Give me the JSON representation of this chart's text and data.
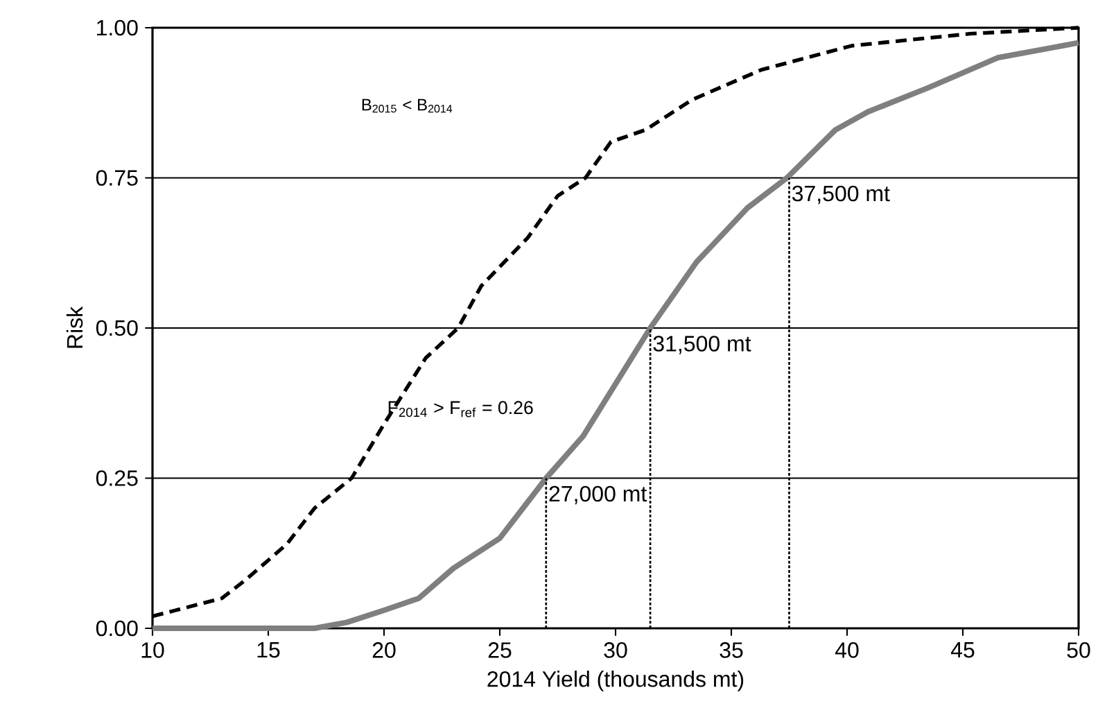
{
  "chart_data": {
    "type": "line",
    "xlabel": "2014 Yield (thousands mt)",
    "ylabel": "Risk",
    "xlim": [
      10,
      50
    ],
    "ylim": [
      0,
      1
    ],
    "xticks": [
      10,
      15,
      20,
      25,
      30,
      35,
      40,
      45,
      50
    ],
    "yticks": [
      {
        "value": 0,
        "label": "0.00"
      },
      {
        "value": 0.25,
        "label": "0.25"
      },
      {
        "value": 0.5,
        "label": "0.50"
      },
      {
        "value": 0.75,
        "label": "0.75"
      },
      {
        "value": 1,
        "label": "1.00"
      }
    ],
    "grid": "y",
    "marker": "none",
    "series": [
      {
        "color": "#000000",
        "line_style": "dashed",
        "x": [
          10,
          11,
          13,
          14,
          15.8,
          17,
          18.6,
          20,
          21.8,
          23.2,
          24.2,
          26.2,
          27.5,
          28.7,
          29.8,
          31.3,
          33.3,
          36.3,
          40.2,
          45.3,
          50
        ],
        "values": [
          0.02,
          0.03,
          0.05,
          0.08,
          0.14,
          0.2,
          0.25,
          0.34,
          0.45,
          0.5,
          0.57,
          0.65,
          0.72,
          0.75,
          0.81,
          0.83,
          0.88,
          0.93,
          0.97,
          0.99,
          1.0
        ]
      },
      {
        "color": "#7f7f7f",
        "line_style": "solid",
        "x": [
          10,
          14,
          17,
          18.4,
          20,
          21.5,
          23,
          25,
          27,
          28.6,
          31.5,
          33.5,
          35.7,
          37.4,
          39.5,
          40.9,
          43.5,
          46.5,
          50
        ],
        "values": [
          0,
          0,
          0,
          0.01,
          0.03,
          0.05,
          0.1,
          0.15,
          0.25,
          0.32,
          0.5,
          0.61,
          0.7,
          0.75,
          0.83,
          0.86,
          0.9,
          0.95,
          0.975
        ]
      },
      {
        "color": "#000000",
        "line_style": "dotted",
        "x": [
          27,
          27
        ],
        "values": [
          0,
          0.25
        ]
      },
      {
        "color": "#000000",
        "line_style": "dotted",
        "x": [
          31.5,
          31.5
        ],
        "values": [
          0,
          0.5
        ]
      },
      {
        "color": "#000000",
        "line_style": "dotted",
        "x": [
          37.5,
          37.5
        ],
        "values": [
          0,
          0.75
        ]
      }
    ],
    "annotations": [
      "B$_{2015}$ < B$_{2014}$",
      "F$_{2014}$ > F$_{ref}$ = 0.26",
      {
        "text": "27,000 mt",
        "x": 27,
        "y": 0.25
      },
      {
        "text": "31,500 mt",
        "x": 31.5,
        "y": 0.5
      },
      {
        "text": "37,500 mt",
        "x": 37.5,
        "y": 0.75
      }
    ]
  }
}
